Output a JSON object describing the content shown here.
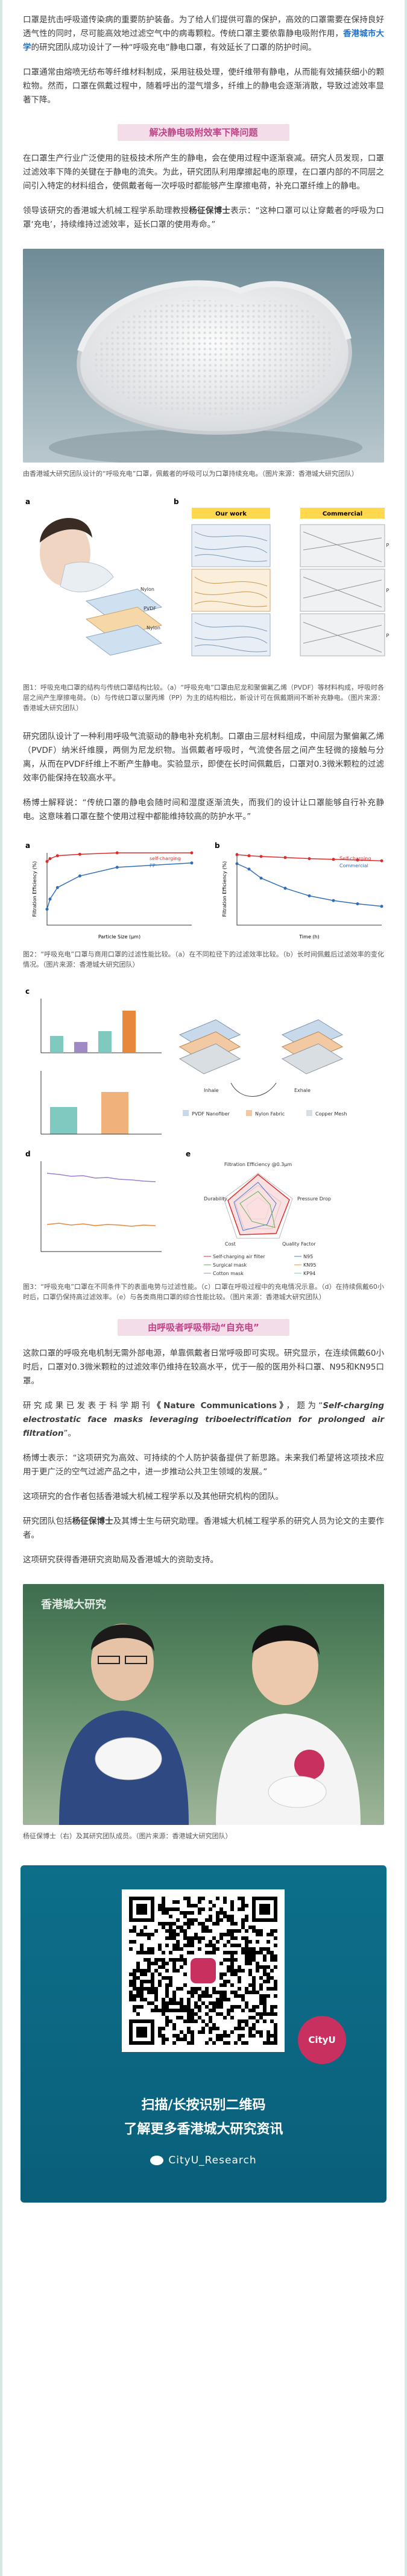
{
  "intro": {
    "p1": "口罩是抗击呼吸道传染病的重要防护装备。为了给人们提供可靠的保护，高效的口罩需要在保持良好透气性的同时，尽可能高效地过滤空气中的病毒颗粒。传统口罩主要依靠静电吸附作用，",
    "p1b": "香港城市大学",
    "p1c": "的研究团队成功设计了一种“呼吸充电”静电口罩，有效延长了口罩的防护时间。",
    "p2": "口罩通常由熔喷无纺布等纤维材料制成，采用驻极处理，使纤维带有静电，从而能有效捕获细小的颗粒物。然而，口罩在佩戴过程中，随着呼出的湿气增多，纤维上的静电会逐渐消散，导致过滤效率显著下降。"
  },
  "section1": {
    "title": "解决静电吸附效率下降问题",
    "p1": "在口罩生产行业广泛使用的驻极技术所产生的静电，会在使用过程中逐渐衰减。研究人员发现，口罩过滤效率下降的关键在于静电的流失。为此，研究团队利用摩擦起电的原理，在口罩内部的不同层之间引入特定的材料组合，使佩戴者每一次呼吸时都能够产生摩擦电荷，补充口罩纤维上的静电。",
    "p2a": "领导该研究的香港城大机械工程学系助理教授",
    "p2b": "杨征保博士",
    "p2c": "表示：“这种口罩可以让穿戴者的呼吸为口罩‘充电’，持续维持过滤效率，延长口罩的使用寿命。”"
  },
  "photo1": {
    "caption": "由香港城大研究团队设计的“呼吸充电”口罩，佩戴者的呼吸可以为口罩持续充电。（图片来源：香港城大研究团队）"
  },
  "fig1": {
    "label_a": "a",
    "label_b": "b",
    "our_work": "Our work",
    "commercial": "Commercial",
    "layers_ours": [
      "Nylon",
      "PVDF",
      "Nylon"
    ],
    "layers_comm": [
      "PP",
      "PP",
      "PP"
    ],
    "caption": "图1：呼吸充电口罩的结构与传统口罩结构比较。（a）“呼吸充电”口罩由尼龙和聚偏氟乙烯（PVDF）等材料构成，呼吸时各层之间产生摩擦电荷。（b）与传统口罩以聚丙烯（PP）为主的结构相比，新设计可在佩戴期间不断补充静电。（图片来源：香港城大研究团队）"
  },
  "para_after_fig1": {
    "p1": "研究团队设计了一种利用呼吸气流驱动的静电补充机制。口罩由三层材料组成，中间层为聚偏氟乙烯（PVDF）纳米纤维膜，两侧为尼龙织物。当佩戴者呼吸时，气流使各层之间产生轻微的接触与分离，从而在PVDF纤维上不断产生静电。实验显示，即使在长时间佩戴后，口罩对0.3微米颗粒的过滤效率仍能保持在较高水平。",
    "p2": "杨博士解释说：“传统口罩的静电会随时间和湿度逐渐流失，而我们的设计让口罩能够自行补充静电。这意味着口罩在整个使用过程中都能维持较高的防护水平。”"
  },
  "fig2": {
    "label_a": "a",
    "label_b": "b",
    "caption": "图2：“呼吸充电”口罩与商用口罩的过滤性能比较。（a）在不同粒径下的过滤效率比较。（b）长时间佩戴后过滤效率的变化情况。（图片来源：香港城大研究团队）"
  },
  "fig3": {
    "label_c": "c",
    "label_d": "d",
    "label_e": "e",
    "inhale": "Inhale",
    "exhale": "Exhale",
    "legend": [
      "PVDF Nanofiber",
      "Nylon Fabric",
      "Copper Mesh"
    ],
    "radar_title": "Filtration Efficiency @0.3μm",
    "radar_axes": [
      "Pressure Drop",
      "Quality Factor",
      "Cost",
      "Durability"
    ],
    "radar_legend": [
      "Self-charging air filter",
      "N95",
      "Surgical mask",
      "KN95",
      "Cotton mask",
      "KP94"
    ],
    "caption": "图3：“呼吸充电”口罩在不同条件下的表面电势与过滤性能。（c）口罩在呼吸过程中的充电情况示意。（d）在持续佩戴60小时后，口罩仍保持高过滤效率。（e）与各类商用口罩的综合性能比较。（图片来源：香港城大研究团队）"
  },
  "section2": {
    "title": "由呼吸者呼吸带动“自充电”",
    "p1": "这款口罩的呼吸充电机制无需外部电源，单靠佩戴者日常呼吸即可实现。研究显示，在连续佩戴60小时后，口罩对0.3微米颗粒的过滤效率仍维持在较高水平，优于一般的医用外科口罩、N95和KN95口罩。",
    "p2a": "研究成果已发表于科学期刊",
    "p2b": "《Nature Communications》",
    "p2c": "，题为“",
    "p2d": "Self-charging electrostatic face masks leveraging triboelectrification for prolonged air filtration",
    "p2e": "”。",
    "p3": "杨博士表示：“这项研究为高效、可持续的个人防护装备提供了新思路。未来我们希望将这项技术应用于更广泛的空气过滤产品之中，进一步推动公共卫生领域的发展。”",
    "p4": "这项研究的合作者包括香港城大机械工程学系以及其他研究机构的团队。",
    "p5a": "研究团队包括",
    "p5b": "杨征保博士",
    "p5c": "及其博士生与研究助理。香港城大机械工程学系的研究人员为论文的主要作者。",
    "p6": "这项研究获得香港研究资助局及香港城大的资助支持。"
  },
  "photo2": {
    "watermark": "香港城大研究",
    "caption": "杨征保博士（右）及其研究团队成员。（图片来源：香港城大研究团队）"
  },
  "footer": {
    "badge": "CityU",
    "line1": "扫描/长按识别二维码",
    "line2": "了解更多香港城大研究资讯",
    "handle": "CityU_Research"
  },
  "fig2_data": {
    "chart_a": {
      "type": "line",
      "xlabel": "Particle Size (μm)",
      "ylabel": "Filtration Efficiency (%)",
      "x": [
        0.3,
        0.5,
        1.0,
        2.5,
        5.0,
        10.0
      ],
      "ylim": [
        95,
        100
      ],
      "series": [
        {
          "name": "self-charging",
          "values": [
            99.4,
            99.6,
            99.8,
            99.9,
            100,
            100
          ]
        },
        {
          "name": "PP",
          "values": [
            96.1,
            96.8,
            97.6,
            98.4,
            99.0,
            99.3
          ]
        }
      ]
    },
    "chart_b": {
      "type": "line",
      "xlabel": "Time (h)",
      "ylabel": "Filtration Efficiency (%)",
      "x": [
        0,
        5,
        10,
        20,
        30,
        40,
        50,
        60
      ],
      "ylim": [
        80,
        100
      ],
      "series": [
        {
          "name": "Self-charging",
          "values": [
            99.5,
            99.2,
            99.0,
            98.7,
            98.4,
            98.2,
            98.0,
            97.8
          ]
        },
        {
          "name": "Commercial",
          "values": [
            97.0,
            95.5,
            93.0,
            90.2,
            88.1,
            86.8,
            85.9,
            85.2
          ]
        }
      ]
    }
  },
  "colors": {
    "accent_blue": "#1e6ec8",
    "title_pink": "#c04488",
    "title_bg": "#f3dde8",
    "frame": "#d6e9e5",
    "footer_bg": "#0d6f8b"
  }
}
